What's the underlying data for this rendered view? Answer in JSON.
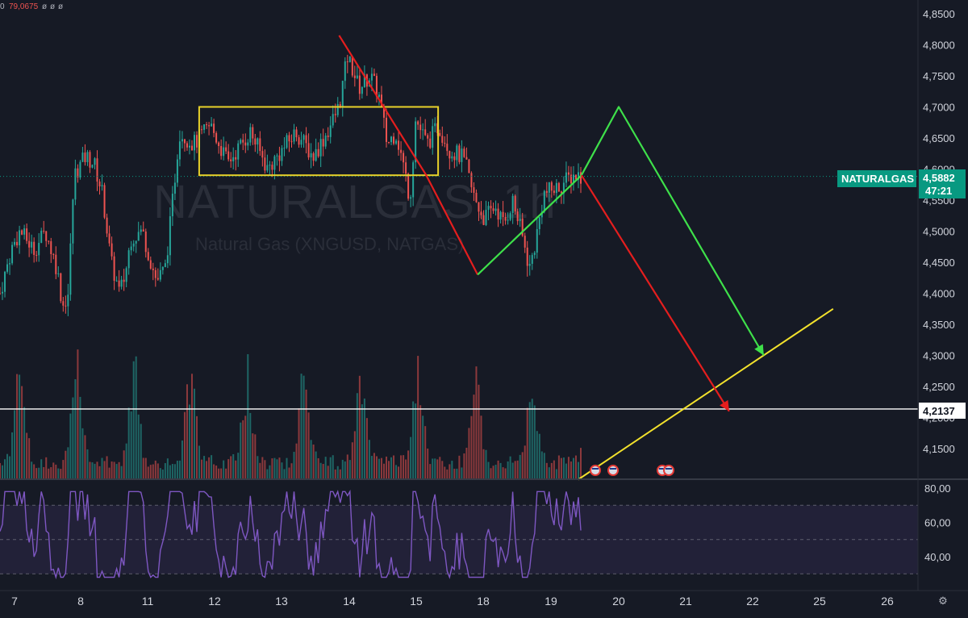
{
  "legend": {
    "values": [
      "0",
      "79,0675",
      "ø",
      "ø",
      "ø"
    ]
  },
  "watermark": {
    "symbol": "NATURALGAS, 1h",
    "description": "Natural Gas (XNGUSD, NATGAS)"
  },
  "price_axis": {
    "ticks": [
      "4,8500",
      "4,8000",
      "4,7500",
      "4,7000",
      "4,6500",
      "4,6000",
      "4,5500",
      "4,5000",
      "4,4500",
      "4,4000",
      "4,3500",
      "4,3000",
      "4,2500",
      "4,2000",
      "4,1500"
    ]
  },
  "rsi_axis": {
    "ticks": [
      "80,00",
      "60,00",
      "40,00"
    ]
  },
  "time_axis": {
    "ticks": [
      "7",
      "8",
      "11",
      "12",
      "13",
      "14",
      "15",
      "18",
      "19",
      "20",
      "21",
      "22",
      "25",
      "26"
    ]
  },
  "symbol_badge": "NATURALGAS",
  "last_price": "4,5882",
  "countdown": "47:21",
  "horizontal_level": "4,2137",
  "colors": {
    "up": "#26a69a",
    "down": "#ef5350",
    "rsi": "#7e57c2",
    "zone": "#e8d22a",
    "projection_up": "#3ee04a",
    "projection_down": "#e41e1e",
    "support": "#f2e12c",
    "badge": "#089981"
  },
  "chart_data": {
    "type": "candlestick",
    "ylim": [
      4.1,
      4.86
    ],
    "rsi_ylim": [
      20,
      85
    ],
    "rsi_levels": [
      70,
      50,
      30
    ],
    "horizontal_line": 4.2137,
    "last_price": 4.5882,
    "consolidation_zone": {
      "top": 4.7,
      "bottom": 4.59
    },
    "drawings": {
      "drop_line": [
        [
          13.85,
          4.815
        ],
        [
          15.45,
          4.59
        ],
        [
          17.75,
          4.43
        ]
      ],
      "bounce_line": [
        [
          17.75,
          4.43
        ],
        [
          19.45,
          4.59
        ]
      ],
      "projection_up": [
        [
          19.45,
          4.59
        ],
        [
          20.0,
          4.7
        ],
        [
          22.5,
          4.3
        ]
      ],
      "projection_down": [
        [
          19.45,
          4.59
        ],
        [
          21.65,
          4.21
        ]
      ],
      "support_line": [
        [
          19.4,
          4.1
        ],
        [
          25.2,
          4.375
        ]
      ]
    }
  }
}
